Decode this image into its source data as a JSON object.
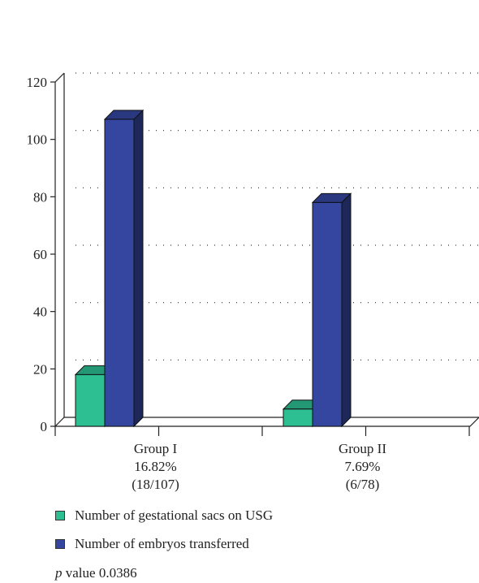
{
  "chart_data": {
    "type": "bar",
    "categories": [
      {
        "name": "Group I",
        "percent": "16.82%",
        "ratio": "(18/107)"
      },
      {
        "name": "Group II",
        "percent": "7.69%",
        "ratio": "(6/78)"
      }
    ],
    "series": [
      {
        "name": "Number of gestational sacs on USG",
        "values": [
          18,
          6
        ],
        "color": "#2dbe91"
      },
      {
        "name": "Number of embryos transferred",
        "values": [
          107,
          78
        ],
        "color": "#3446a0"
      }
    ],
    "ylim": [
      0,
      120
    ],
    "yticks": [
      "0",
      "20",
      "40",
      "60",
      "80",
      "100",
      "120"
    ],
    "grid": "dotted-horizontal",
    "legend": "bottom-left"
  },
  "footer": {
    "p_label": "p",
    "p_text": " value 0.0386"
  }
}
